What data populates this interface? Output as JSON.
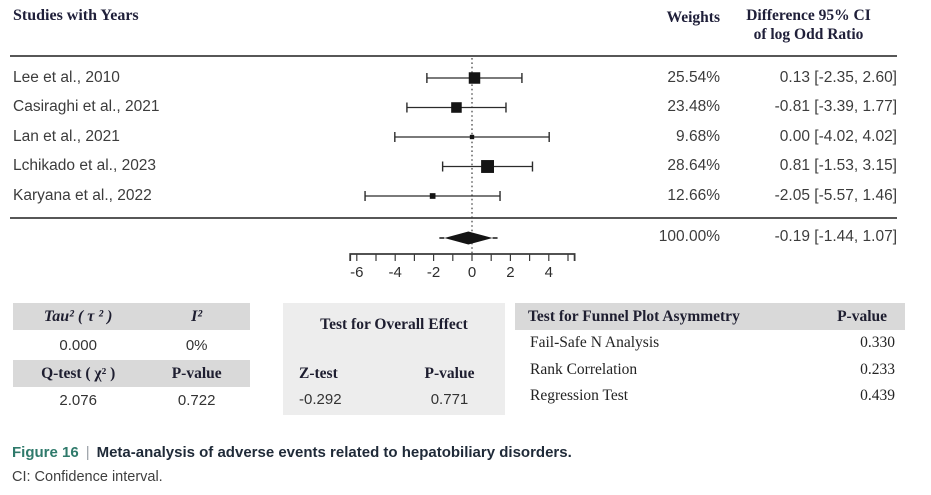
{
  "header": {
    "studies_col": "Studies with Years",
    "weights_col": "Weights",
    "diff_line1": "Difference 95% CI",
    "diff_line2": "of log Odd Ratio"
  },
  "chart_data": {
    "type": "forest",
    "effect_measure": "Difference of log Odd Ratio",
    "zero_reference": 0,
    "axis": {
      "tick_start": -6,
      "tick_end": 5,
      "tick_step": 1,
      "label_values": [
        -6,
        -4,
        -2,
        0,
        2,
        4
      ],
      "xlim": [
        -6.5,
        5.5
      ],
      "grid": false
    },
    "studies": [
      {
        "label": "Lee et al., 2010",
        "weight_pct": 25.54,
        "weight_label": "25.54%",
        "estimate": 0.13,
        "ci_lower": -2.35,
        "ci_upper": 2.6,
        "ci_label": "0.13 [-2.35, 2.60]"
      },
      {
        "label": "Casiraghi et al., 2021",
        "weight_pct": 23.48,
        "weight_label": "23.48%",
        "estimate": -0.81,
        "ci_lower": -3.39,
        "ci_upper": 1.77,
        "ci_label": "-0.81 [-3.39, 1.77]"
      },
      {
        "label": "Lan et al., 2021",
        "weight_pct": 9.68,
        "weight_label": "9.68%",
        "estimate": 0.0,
        "ci_lower": -4.02,
        "ci_upper": 4.02,
        "ci_label": "0.00 [-4.02, 4.02]"
      },
      {
        "label": "Lchikado et al., 2023",
        "weight_pct": 28.64,
        "weight_label": "28.64%",
        "estimate": 0.81,
        "ci_lower": -1.53,
        "ci_upper": 3.15,
        "ci_label": "0.81 [-1.53, 3.15]"
      },
      {
        "label": "Karyana et al., 2022",
        "weight_pct": 12.66,
        "weight_label": "12.66%",
        "estimate": -2.05,
        "ci_lower": -5.57,
        "ci_upper": 1.46,
        "ci_label": "-2.05 [-5.57, 1.46]"
      }
    ],
    "overall": {
      "weight_label": "100.00%",
      "estimate": -0.19,
      "ci_lower": -1.44,
      "ci_upper": 1.07,
      "ci_label": "-0.19 [-1.44, 1.07]"
    }
  },
  "stats": {
    "heterogeneity": {
      "tau2_header": "Tau² ( τ ² )",
      "i2_header": "I²",
      "tau2": "0.000",
      "i2": "0%",
      "qtest_header": "Q-test ( χ² )",
      "pvalue_header": "P-value",
      "qtest": "2.076",
      "pvalue": "0.722"
    },
    "overall_effect": {
      "title": "Test for Overall Effect",
      "ztest_header": "Z-test",
      "pvalue_header": "P-value",
      "ztest": "-0.292",
      "pvalue": "0.771"
    },
    "funnel": {
      "title": "Test for Funnel Plot Asymmetry",
      "pvalue_header": "P-value",
      "rows": [
        {
          "label": "Fail-Safe N Analysis",
          "value": "0.330"
        },
        {
          "label": "Rank Correlation",
          "value": "0.233"
        },
        {
          "label": "Regression Test",
          "value": "0.439"
        }
      ]
    }
  },
  "caption": {
    "figure_label": "Figure 16",
    "separator": "|",
    "title": "Meta-analysis of adverse events related to hepatobiliary disorders.",
    "note": "CI: Confidence interval."
  },
  "colors": {
    "accent_teal": "#2f7a6b",
    "band_gray": "#d9d9d9",
    "panel_gray": "#ededed",
    "rule_gray": "#575757",
    "marker_black": "#141414",
    "ci_bar": "#2b2b2b"
  }
}
